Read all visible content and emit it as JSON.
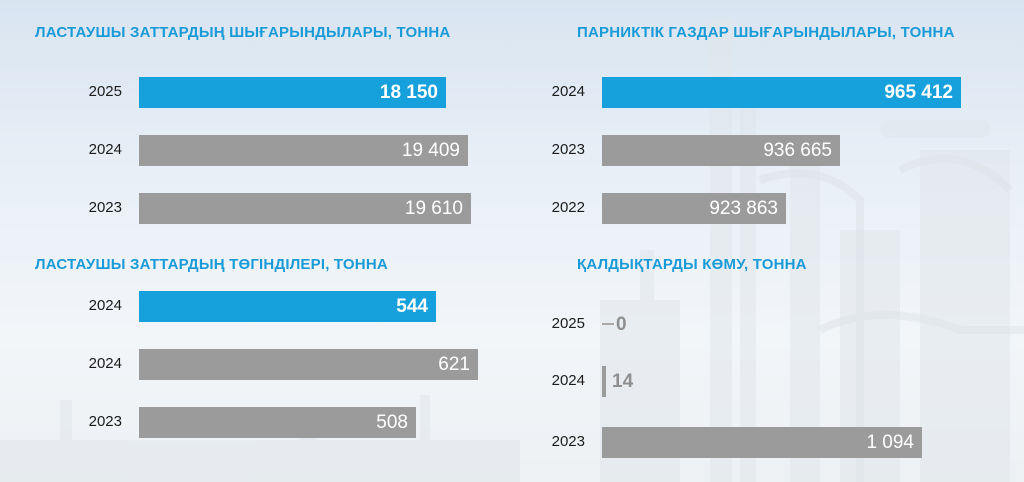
{
  "colors": {
    "highlight": "#16a0dc",
    "gray": "#9b9b9b",
    "title": "#1a9bd7"
  },
  "chart_data": [
    {
      "type": "bar",
      "orientation": "horizontal",
      "title": "ЛАСТАУШЫ ЗАТТАРДЫҢ ШЫҒАРЫНДЫЛАРЫ, ТОННА",
      "categories": [
        "2025",
        "2024",
        "2023"
      ],
      "values": [
        18150,
        19409,
        19610
      ],
      "labels": [
        "18 150",
        "19 409",
        "19 610"
      ],
      "highlight": [
        true,
        false,
        false
      ],
      "xlim": [
        0,
        19610
      ]
    },
    {
      "type": "bar",
      "orientation": "horizontal",
      "title": "ПАРНИКТІК ГАЗДАР ШЫҒАРЫНДЫЛАРЫ, ТОННА",
      "categories": [
        "2024",
        "2023",
        "2022"
      ],
      "values": [
        965412,
        936665,
        923863
      ],
      "labels": [
        "965 412",
        "936 665",
        "923 863"
      ],
      "highlight": [
        true,
        false,
        false
      ],
      "xlim": [
        880000,
        965412
      ]
    },
    {
      "type": "bar",
      "orientation": "horizontal",
      "title": "ЛАСТАУШЫ ЗАТТАРДЫҢ ТӨГІНДІЛЕРІ, ТОННА",
      "categories": [
        "2024",
        "2024",
        "2023"
      ],
      "values": [
        544,
        621,
        508
      ],
      "labels": [
        "544",
        "621",
        "508"
      ],
      "highlight": [
        true,
        false,
        false
      ],
      "xlim": [
        0,
        621
      ]
    },
    {
      "type": "bar",
      "orientation": "horizontal",
      "title": "ҚАЛДЫҚТАРДЫ КӨМУ, ТОННА",
      "categories": [
        "2025",
        "2024",
        "2023"
      ],
      "values": [
        0,
        14,
        1094
      ],
      "labels": [
        "0",
        "14",
        "1 094"
      ],
      "highlight": [
        false,
        false,
        false
      ],
      "xlim": [
        0,
        1094
      ]
    }
  ]
}
